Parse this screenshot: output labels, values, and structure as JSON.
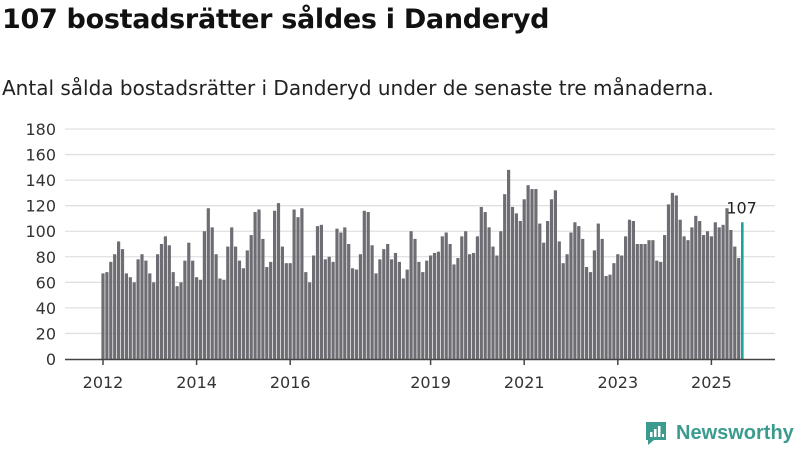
{
  "header": {
    "title": "107 bostadsrätter såldes i Danderyd",
    "subtitle": "Antal sålda bostadsrätter i Danderyd under de senaste tre månaderna."
  },
  "brand": {
    "name": "Newsworthy"
  },
  "chart_data": {
    "type": "bar",
    "title": "107 bostadsrätter såldes i Danderyd",
    "subtitle": "Antal sålda bostadsrätter i Danderyd under de senaste tre månaderna.",
    "xlabel": "",
    "ylabel": "",
    "ylim": [
      0,
      180
    ],
    "yticks": [
      0,
      20,
      40,
      60,
      80,
      100,
      120,
      140,
      160,
      180
    ],
    "grid": true,
    "start": "2012-01",
    "frequency": "monthly",
    "xtick_labels": [
      {
        "label": "2012",
        "index": 0
      },
      {
        "label": "2014",
        "index": 24
      },
      {
        "label": "2016",
        "index": 48
      },
      {
        "label": "2019",
        "index": 84
      },
      {
        "label": "2021",
        "index": 108
      },
      {
        "label": "2023",
        "index": 132
      },
      {
        "label": "2025",
        "index": 156
      }
    ],
    "colors": {
      "bar": "#6e6d73",
      "highlight": "#1aa399",
      "grid": "#e0e0e0",
      "axis": "#444444"
    },
    "highlight_label": "107",
    "values": [
      67,
      68,
      76,
      82,
      92,
      86,
      67,
      64,
      60,
      78,
      82,
      77,
      67,
      60,
      82,
      90,
      96,
      89,
      68,
      57,
      60,
      77,
      91,
      77,
      64,
      62,
      100,
      118,
      103,
      82,
      63,
      62,
      88,
      103,
      88,
      77,
      71,
      85,
      97,
      115,
      117,
      94,
      72,
      76,
      116,
      122,
      88,
      75,
      75,
      117,
      111,
      118,
      68,
      60,
      81,
      104,
      105,
      78,
      80,
      76,
      102,
      99,
      103,
      90,
      71,
      70,
      82,
      116,
      115,
      89,
      67,
      78,
      86,
      90,
      78,
      83,
      76,
      63,
      70,
      100,
      94,
      76,
      68,
      77,
      81,
      83,
      84,
      96,
      99,
      90,
      74,
      79,
      96,
      100,
      82,
      83,
      96,
      119,
      115,
      103,
      88,
      81,
      100,
      129,
      148,
      119,
      114,
      108,
      125,
      136,
      133,
      133,
      106,
      91,
      108,
      125,
      132,
      92,
      75,
      82,
      99,
      107,
      104,
      94,
      72,
      68,
      85,
      106,
      94,
      65,
      66,
      75,
      82,
      81,
      96,
      109,
      108,
      90,
      90,
      90,
      93,
      93,
      77,
      76,
      97,
      121,
      130,
      128,
      109,
      96,
      93,
      103,
      112,
      108,
      97,
      100,
      96,
      107,
      103,
      105,
      118,
      101,
      88,
      79,
      107
    ]
  }
}
